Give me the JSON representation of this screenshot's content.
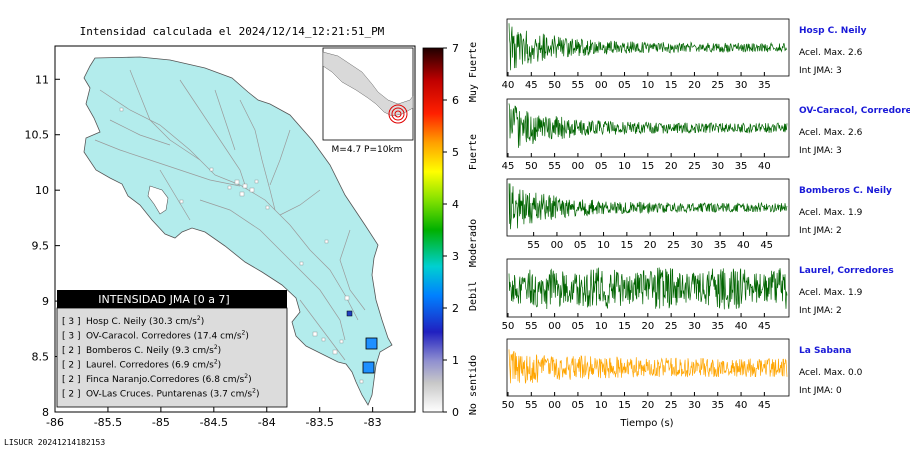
{
  "map": {
    "title": "Intensidad calculada el 2024/12/14_12:21:51_PM",
    "x_ticks": [
      "-86",
      "-85.5",
      "-85",
      "-84.5",
      "-84",
      "-83.5",
      "-83"
    ],
    "y_ticks": [
      "8",
      "8.5",
      "9",
      "9.5",
      "10",
      "10.5",
      "11"
    ],
    "inset_label": "M=4.7 P=10km",
    "legend": {
      "title": "INTENSIDAD JMA [0 a 7]",
      "items": [
        {
          "level": "[ 3 ]",
          "name": "Hosp C. Neily",
          "value": "(30.3 cm/s",
          "sup": "2",
          ")": ")"
        },
        {
          "level": "[ 3 ]",
          "name": "OV-Caracol. Corredores",
          "value": "(17.4 cm/s",
          "sup": "2",
          ")": ")"
        },
        {
          "level": "[ 2 ]",
          "name": "Bomberos C. Neily",
          "value": "(9.3 cm/s",
          "sup": "2",
          ")": ")"
        },
        {
          "level": "[ 2 ]",
          "name": "Laurel. Corredores",
          "value": "(6.9 cm/s",
          "sup": "2",
          ")": ")"
        },
        {
          "level": "[ 2 ]",
          "name": "Finca Naranjo.Corredores",
          "value": "(6.8 cm/s",
          "sup": "2",
          ")": ")"
        },
        {
          "level": "[ 2 ]",
          "name": "OV-Las Cruces. Puntarenas",
          "value": "(3.7 cm/s",
          "sup": "2",
          ")": ")"
        }
      ]
    },
    "colorbar": {
      "ticks": [
        "0",
        "1",
        "2",
        "3",
        "4",
        "5",
        "6",
        "7"
      ],
      "labels": [
        "No sentido",
        "Debil",
        "Moderado",
        "Fuerte",
        "Muy Fuerte"
      ]
    }
  },
  "footer": "LISUCR 20241214182153",
  "chart_data": {
    "type": "line",
    "xlabel": "Tiempo (s)",
    "series": [
      {
        "name": "Hosp C. Neily",
        "accel_label": "Acel. Max. 2.6",
        "int_label": "Int JMA: 3",
        "color": "#006400",
        "x_ticks": [
          "40",
          "45",
          "50",
          "55",
          "00",
          "05",
          "10",
          "15",
          "20",
          "25",
          "30",
          "35"
        ]
      },
      {
        "name": "OV-Caracol, Corredore",
        "accel_label": "Acel. Max. 2.6",
        "int_label": "Int JMA: 3",
        "color": "#006400",
        "x_ticks": [
          "45",
          "50",
          "55",
          "00",
          "05",
          "10",
          "15",
          "20",
          "25",
          "30",
          "35",
          "40"
        ]
      },
      {
        "name": "Bomberos C. Neily",
        "accel_label": "Acel. Max. 1.9",
        "int_label": "Int JMA: 2",
        "color": "#006400",
        "x_ticks": [
          "55",
          "00",
          "05",
          "10",
          "15",
          "20",
          "25",
          "30",
          "35",
          "40",
          "45"
        ]
      },
      {
        "name": "Laurel, Corredores",
        "accel_label": "Acel. Max. 1.9",
        "int_label": "Int JMA: 2",
        "color": "#006400",
        "x_ticks": [
          "50",
          "55",
          "00",
          "05",
          "10",
          "15",
          "20",
          "25",
          "30",
          "35",
          "40",
          "45"
        ]
      },
      {
        "name": "La Sabana",
        "accel_label": "Acel. Max. 0.0",
        "int_label": "Int JMA: 0",
        "color": "#FFA500",
        "x_ticks": [
          "50",
          "55",
          "00",
          "05",
          "10",
          "15",
          "20",
          "25",
          "30",
          "35",
          "40",
          "45"
        ]
      }
    ]
  }
}
